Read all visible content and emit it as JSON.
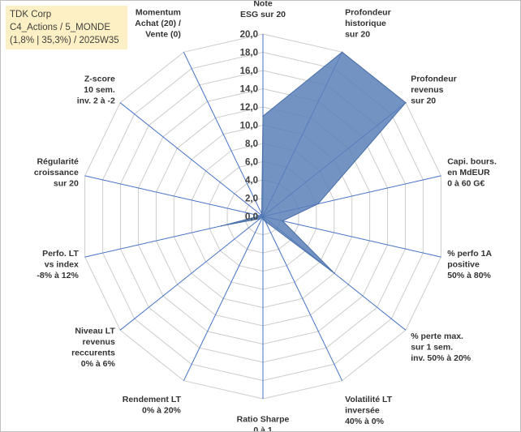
{
  "title": {
    "line1": "TDK Corp",
    "line2": "C4_Actions / 5_MONDE",
    "line3": "(1,8% | 35,3%) / 2025W35"
  },
  "colors": {
    "series_fill": "#5b80b8",
    "series_stroke": "#4a6fa8",
    "spoke": "#4472c4",
    "ring": "#cccccc",
    "title_bg": "#fdf0c4"
  },
  "chart_data": {
    "type": "radar",
    "title": "",
    "rlim": [
      0,
      20
    ],
    "rticks": [
      "0,0",
      "2,0",
      "4,0",
      "6,0",
      "8,0",
      "10,0",
      "12,0",
      "14,0",
      "16,0",
      "18,0",
      "20,0"
    ],
    "grid": true,
    "legend": "none",
    "axes": [
      [
        "Note",
        "ESG sur 20"
      ],
      [
        "Profondeur",
        "historique",
        "sur 20"
      ],
      [
        "Profondeur",
        "revenus",
        "sur 20"
      ],
      [
        "Capi. bours.",
        "en MdEUR",
        "0 à 60 G€"
      ],
      [
        "% perfo 1A",
        "positive",
        "50% à 80%"
      ],
      [
        "% perte max.",
        "sur 1 sem.",
        "inv. 50% à 20%"
      ],
      [
        "Volatilité LT",
        "inversée",
        "40% à 0%"
      ],
      [
        "Ratio Sharpe",
        "0 à 1"
      ],
      [
        "Rendement LT",
        "0% à 20%"
      ],
      [
        "Niveau LT",
        "revenus",
        "reccurents",
        "0% à 6%"
      ],
      [
        "Perfo. LT",
        "vs index",
        "-8% à 12%"
      ],
      [
        "Régularité",
        "croissance",
        "sur 20"
      ],
      [
        "Z-score",
        "10 sem.",
        "inv. 2 à -2"
      ],
      [
        "Momentum",
        "Achat (20) /",
        "Vente (0)"
      ]
    ],
    "series": [
      {
        "values": [
          11.0,
          20.0,
          20.0,
          6.2,
          2.2,
          10.0,
          0.6,
          0.3,
          0.0,
          0.4,
          4.7,
          0.3,
          0.3,
          0.3
        ]
      }
    ]
  }
}
